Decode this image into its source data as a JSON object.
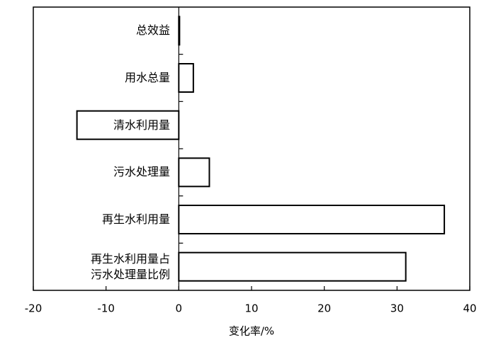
{
  "chart_data": {
    "type": "barh",
    "categories": [
      "总效益",
      "用水总量",
      "清水利用量",
      "污水处理量",
      "再生水利用量",
      "再生水利用量占\n污水处理量比例"
    ],
    "values": [
      0.1,
      2,
      -14,
      4.2,
      36.5,
      31.2
    ],
    "color": "#ffffff",
    "xlabel": "变化率/%",
    "xlim": [
      -20,
      40
    ],
    "xticks": [
      -20,
      -10,
      0,
      10,
      20,
      30,
      40
    ]
  }
}
